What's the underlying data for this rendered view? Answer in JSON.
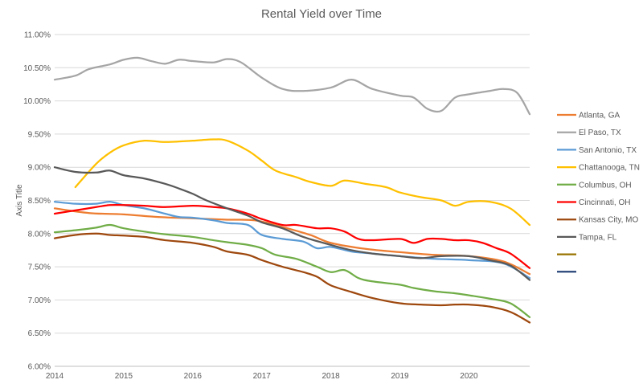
{
  "chart_data": {
    "type": "line",
    "title": "Rental Yield over Time",
    "xlabel": "",
    "ylabel": "Axis Title",
    "xlim": [
      2014,
      2020.88
    ],
    "ylim": [
      6.0,
      11.0
    ],
    "x_ticks": [
      2014,
      2015,
      2016,
      2017,
      2018,
      2019,
      2020
    ],
    "y_ticks": [
      6.0,
      6.5,
      7.0,
      7.5,
      8.0,
      8.5,
      9.0,
      9.5,
      10.0,
      10.5,
      11.0
    ],
    "y_tick_labels": [
      "6.00%",
      "6.50%",
      "7.00%",
      "7.50%",
      "8.00%",
      "8.50%",
      "9.00%",
      "9.50%",
      "10.00%",
      "10.50%",
      "11.00%"
    ],
    "grid": "horizontal",
    "legend": "right",
    "series": [
      {
        "name": "Atlanta, GA",
        "color": "#ED7D31",
        "points": [
          [
            2014.0,
            8.38
          ],
          [
            2014.5,
            8.31
          ],
          [
            2015.0,
            8.29
          ],
          [
            2015.5,
            8.25
          ],
          [
            2016.0,
            8.23
          ],
          [
            2016.5,
            8.21
          ],
          [
            2016.9,
            8.2
          ],
          [
            2017.3,
            8.1
          ],
          [
            2017.7,
            7.98
          ],
          [
            2018.0,
            7.86
          ],
          [
            2018.5,
            7.77
          ],
          [
            2019.0,
            7.72
          ],
          [
            2019.5,
            7.68
          ],
          [
            2020.0,
            7.66
          ],
          [
            2020.5,
            7.58
          ],
          [
            2020.88,
            7.39
          ]
        ]
      },
      {
        "name": "El Paso, TX",
        "color": "#A5A5A5",
        "points": [
          [
            2014.0,
            10.32
          ],
          [
            2014.3,
            10.38
          ],
          [
            2014.5,
            10.48
          ],
          [
            2014.8,
            10.55
          ],
          [
            2015.0,
            10.62
          ],
          [
            2015.2,
            10.65
          ],
          [
            2015.4,
            10.6
          ],
          [
            2015.6,
            10.56
          ],
          [
            2015.8,
            10.62
          ],
          [
            2016.0,
            10.6
          ],
          [
            2016.3,
            10.58
          ],
          [
            2016.5,
            10.63
          ],
          [
            2016.7,
            10.58
          ],
          [
            2017.0,
            10.35
          ],
          [
            2017.3,
            10.18
          ],
          [
            2017.6,
            10.15
          ],
          [
            2018.0,
            10.2
          ],
          [
            2018.3,
            10.32
          ],
          [
            2018.6,
            10.18
          ],
          [
            2019.0,
            10.08
          ],
          [
            2019.2,
            10.05
          ],
          [
            2019.4,
            9.88
          ],
          [
            2019.6,
            9.85
          ],
          [
            2019.8,
            10.05
          ],
          [
            2020.0,
            10.1
          ],
          [
            2020.3,
            10.15
          ],
          [
            2020.5,
            10.18
          ],
          [
            2020.7,
            10.12
          ],
          [
            2020.88,
            9.8
          ]
        ]
      },
      {
        "name": "San Antonio, TX",
        "color": "#5B9BD5",
        "points": [
          [
            2014.0,
            8.48
          ],
          [
            2014.3,
            8.45
          ],
          [
            2014.6,
            8.45
          ],
          [
            2014.8,
            8.48
          ],
          [
            2015.0,
            8.43
          ],
          [
            2015.3,
            8.38
          ],
          [
            2015.6,
            8.3
          ],
          [
            2015.8,
            8.25
          ],
          [
            2016.0,
            8.24
          ],
          [
            2016.3,
            8.2
          ],
          [
            2016.5,
            8.16
          ],
          [
            2016.8,
            8.13
          ],
          [
            2017.0,
            7.98
          ],
          [
            2017.3,
            7.92
          ],
          [
            2017.6,
            7.88
          ],
          [
            2017.8,
            7.78
          ],
          [
            2018.0,
            7.8
          ],
          [
            2018.3,
            7.73
          ],
          [
            2018.6,
            7.7
          ],
          [
            2019.0,
            7.66
          ],
          [
            2019.5,
            7.62
          ],
          [
            2020.0,
            7.6
          ],
          [
            2020.5,
            7.55
          ],
          [
            2020.88,
            7.33
          ]
        ]
      },
      {
        "name": "Chattanooga, TN",
        "color": "#FFC000",
        "points": [
          [
            2014.3,
            8.7
          ],
          [
            2014.6,
            9.05
          ],
          [
            2014.8,
            9.22
          ],
          [
            2015.0,
            9.33
          ],
          [
            2015.3,
            9.4
          ],
          [
            2015.6,
            9.38
          ],
          [
            2016.0,
            9.4
          ],
          [
            2016.3,
            9.42
          ],
          [
            2016.5,
            9.4
          ],
          [
            2016.8,
            9.25
          ],
          [
            2017.0,
            9.1
          ],
          [
            2017.2,
            8.95
          ],
          [
            2017.5,
            8.85
          ],
          [
            2017.7,
            8.78
          ],
          [
            2018.0,
            8.72
          ],
          [
            2018.2,
            8.8
          ],
          [
            2018.5,
            8.75
          ],
          [
            2018.8,
            8.7
          ],
          [
            2019.0,
            8.62
          ],
          [
            2019.3,
            8.55
          ],
          [
            2019.6,
            8.5
          ],
          [
            2019.8,
            8.42
          ],
          [
            2020.0,
            8.48
          ],
          [
            2020.3,
            8.48
          ],
          [
            2020.6,
            8.38
          ],
          [
            2020.88,
            8.13
          ]
        ]
      },
      {
        "name": "Columbus, OH",
        "color": "#70AD47",
        "points": [
          [
            2014.0,
            8.02
          ],
          [
            2014.3,
            8.05
          ],
          [
            2014.6,
            8.09
          ],
          [
            2014.8,
            8.13
          ],
          [
            2015.0,
            8.08
          ],
          [
            2015.3,
            8.03
          ],
          [
            2015.6,
            7.99
          ],
          [
            2016.0,
            7.95
          ],
          [
            2016.3,
            7.9
          ],
          [
            2016.5,
            7.87
          ],
          [
            2016.8,
            7.83
          ],
          [
            2017.0,
            7.78
          ],
          [
            2017.2,
            7.68
          ],
          [
            2017.5,
            7.62
          ],
          [
            2017.8,
            7.5
          ],
          [
            2018.0,
            7.42
          ],
          [
            2018.2,
            7.45
          ],
          [
            2018.4,
            7.33
          ],
          [
            2018.6,
            7.28
          ],
          [
            2019.0,
            7.23
          ],
          [
            2019.2,
            7.18
          ],
          [
            2019.5,
            7.13
          ],
          [
            2019.8,
            7.1
          ],
          [
            2020.0,
            7.07
          ],
          [
            2020.3,
            7.02
          ],
          [
            2020.6,
            6.95
          ],
          [
            2020.88,
            6.74
          ]
        ]
      },
      {
        "name": "Cincinnati, OH",
        "color": "#FF0000",
        "points": [
          [
            2014.0,
            8.3
          ],
          [
            2014.3,
            8.35
          ],
          [
            2014.6,
            8.4
          ],
          [
            2014.8,
            8.43
          ],
          [
            2015.0,
            8.43
          ],
          [
            2015.3,
            8.42
          ],
          [
            2015.6,
            8.4
          ],
          [
            2016.0,
            8.42
          ],
          [
            2016.3,
            8.4
          ],
          [
            2016.5,
            8.38
          ],
          [
            2016.8,
            8.3
          ],
          [
            2017.0,
            8.22
          ],
          [
            2017.3,
            8.13
          ],
          [
            2017.5,
            8.13
          ],
          [
            2017.8,
            8.08
          ],
          [
            2018.0,
            8.08
          ],
          [
            2018.2,
            8.03
          ],
          [
            2018.4,
            7.92
          ],
          [
            2018.6,
            7.9
          ],
          [
            2019.0,
            7.92
          ],
          [
            2019.2,
            7.86
          ],
          [
            2019.4,
            7.92
          ],
          [
            2019.6,
            7.92
          ],
          [
            2019.8,
            7.9
          ],
          [
            2020.0,
            7.9
          ],
          [
            2020.2,
            7.86
          ],
          [
            2020.4,
            7.78
          ],
          [
            2020.6,
            7.7
          ],
          [
            2020.88,
            7.48
          ]
        ]
      },
      {
        "name": "Kansas City, MO",
        "color": "#9E480E",
        "points": [
          [
            2014.0,
            7.93
          ],
          [
            2014.3,
            7.98
          ],
          [
            2014.6,
            8.0
          ],
          [
            2014.8,
            7.98
          ],
          [
            2015.0,
            7.97
          ],
          [
            2015.3,
            7.95
          ],
          [
            2015.6,
            7.9
          ],
          [
            2016.0,
            7.86
          ],
          [
            2016.3,
            7.8
          ],
          [
            2016.5,
            7.73
          ],
          [
            2016.8,
            7.68
          ],
          [
            2017.0,
            7.6
          ],
          [
            2017.3,
            7.5
          ],
          [
            2017.6,
            7.42
          ],
          [
            2017.8,
            7.35
          ],
          [
            2018.0,
            7.22
          ],
          [
            2018.3,
            7.12
          ],
          [
            2018.6,
            7.03
          ],
          [
            2019.0,
            6.95
          ],
          [
            2019.3,
            6.93
          ],
          [
            2019.6,
            6.92
          ],
          [
            2019.8,
            6.93
          ],
          [
            2020.0,
            6.93
          ],
          [
            2020.3,
            6.9
          ],
          [
            2020.6,
            6.82
          ],
          [
            2020.88,
            6.66
          ]
        ]
      },
      {
        "name": "Tampa, FL",
        "color": "#595959",
        "points": [
          [
            2014.0,
            9.0
          ],
          [
            2014.3,
            8.93
          ],
          [
            2014.6,
            8.92
          ],
          [
            2014.8,
            8.95
          ],
          [
            2015.0,
            8.88
          ],
          [
            2015.3,
            8.83
          ],
          [
            2015.6,
            8.75
          ],
          [
            2015.8,
            8.68
          ],
          [
            2016.0,
            8.6
          ],
          [
            2016.2,
            8.5
          ],
          [
            2016.5,
            8.38
          ],
          [
            2016.8,
            8.27
          ],
          [
            2017.0,
            8.17
          ],
          [
            2017.3,
            8.08
          ],
          [
            2017.6,
            7.95
          ],
          [
            2018.0,
            7.83
          ],
          [
            2018.3,
            7.75
          ],
          [
            2018.6,
            7.7
          ],
          [
            2019.0,
            7.66
          ],
          [
            2019.3,
            7.63
          ],
          [
            2019.6,
            7.66
          ],
          [
            2020.0,
            7.66
          ],
          [
            2020.3,
            7.6
          ],
          [
            2020.6,
            7.52
          ],
          [
            2020.88,
            7.3
          ]
        ]
      }
    ],
    "legend_extra_colors": [
      "#997300",
      "#264478"
    ]
  }
}
